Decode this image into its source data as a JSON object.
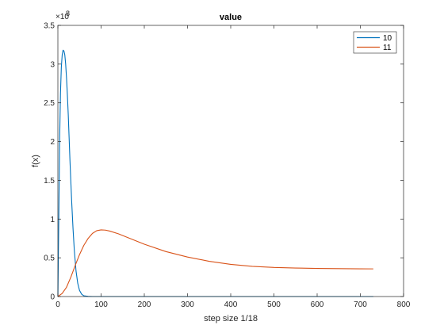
{
  "chart_data": {
    "type": "line",
    "title": "value",
    "xlabel": "step size 1/18",
    "ylabel": "f(x)",
    "xlim": [
      0,
      800
    ],
    "ylim": [
      0,
      350000000
    ],
    "x_ticks": [
      0,
      100,
      200,
      300,
      400,
      500,
      600,
      700,
      800
    ],
    "x_tick_labels": [
      "0",
      "100",
      "200",
      "300",
      "400",
      "500",
      "600",
      "700",
      "800"
    ],
    "y_ticks": [
      0,
      50000000,
      100000000,
      150000000,
      200000000,
      250000000,
      300000000,
      350000000
    ],
    "y_tick_labels": [
      "0",
      "0.5",
      "1",
      "1.5",
      "2",
      "2.5",
      "3",
      "3.5"
    ],
    "y_multiplier_base": "×10",
    "y_multiplier_exp": "8",
    "legend_position": "top-right",
    "grid": false,
    "series": [
      {
        "name": "10",
        "color": "#0072bd",
        "x": [
          0,
          2,
          4,
          6,
          8,
          10,
          12,
          14,
          16,
          18,
          20,
          22,
          24,
          26,
          28,
          30,
          32,
          35,
          38,
          42,
          46,
          50,
          55,
          60,
          70,
          80,
          100,
          150,
          730
        ],
        "y": [
          0,
          95000000,
          200000000,
          262000000,
          296000000,
          312000000,
          318000000,
          317000000,
          312000000,
          300000000,
          282000000,
          260000000,
          235000000,
          205000000,
          175000000,
          148000000,
          122000000,
          88000000,
          60000000,
          33000000,
          17000000,
          8000000,
          3000000,
          1000000,
          200000,
          0,
          0,
          0,
          0
        ]
      },
      {
        "name": "11",
        "color": "#d95319",
        "x": [
          0,
          10,
          20,
          30,
          40,
          50,
          60,
          70,
          80,
          90,
          100,
          110,
          120,
          140,
          160,
          180,
          200,
          250,
          300,
          350,
          400,
          450,
          500,
          550,
          600,
          650,
          700,
          730
        ],
        "y": [
          0,
          4000000,
          12000000,
          25000000,
          40000000,
          54000000,
          66000000,
          75000000,
          81500000,
          85000000,
          86000000,
          85700000,
          84500000,
          81000000,
          76500000,
          72000000,
          67500000,
          58000000,
          51000000,
          45500000,
          41500000,
          39000000,
          37500000,
          36800000,
          36300000,
          36000000,
          35800000,
          35700000
        ]
      }
    ]
  }
}
